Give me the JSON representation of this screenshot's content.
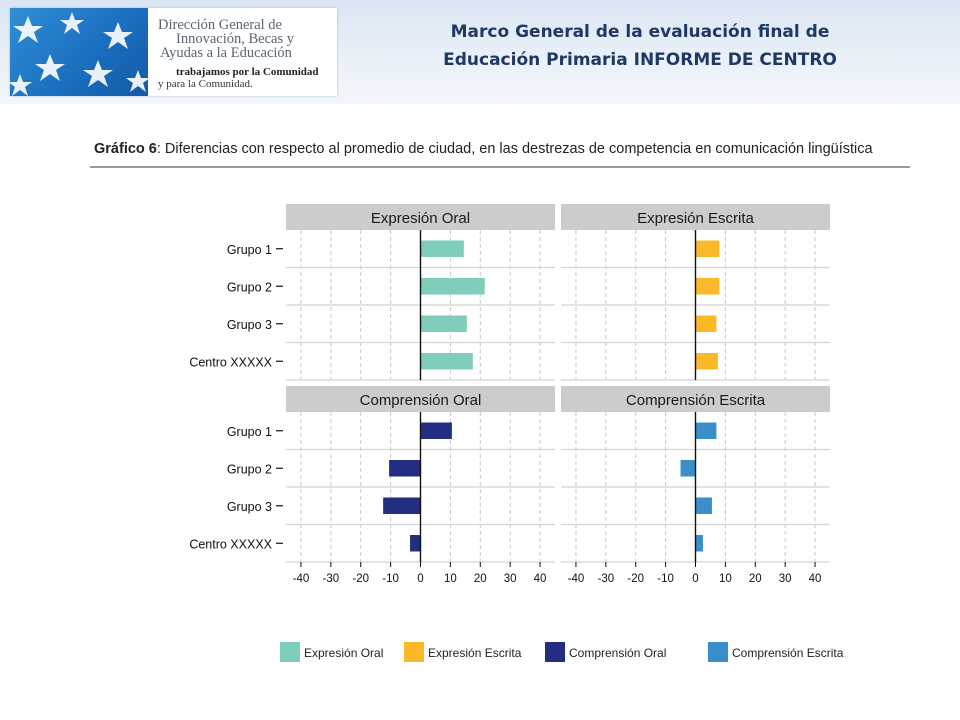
{
  "header": {
    "logo": {
      "line1": "Dirección General de",
      "line2": "Innovación, Becas y",
      "line3": "Ayudas a la Educación",
      "tagline1": "trabajamos por la Comunidad",
      "tagline2": "y para la Comunidad."
    },
    "title_line1": "Marco General de la evaluación final de",
    "title_line2": "Educación Primaria INFORME DE CENTRO"
  },
  "figure": {
    "caption_label": "Gráfico 6",
    "caption_text": ": Diferencias con respecto al promedio de ciudad, en las destrezas de competencia en comunicación lingüística"
  },
  "chart_data": {
    "type": "bar",
    "orientation": "horizontal",
    "layout": "facet-2x2",
    "categories": [
      "Grupo 1",
      "Grupo 2",
      "Grupo 3",
      "Centro  XXXXX"
    ],
    "xlim": [
      -45,
      45
    ],
    "xticks": [
      -40,
      -30,
      -20,
      -10,
      0,
      10,
      20,
      30,
      40
    ],
    "grid": true,
    "legend_position": "bottom",
    "panels": [
      {
        "title": "Expresión Oral",
        "color": "#7fcdbb",
        "values": [
          14.5,
          21.5,
          15.5,
          17.5
        ]
      },
      {
        "title": "Expresión Escrita",
        "color": "#fbb829",
        "values": [
          8,
          8,
          7,
          7.5
        ]
      },
      {
        "title": "Comprensión Oral",
        "color": "#232e82",
        "values": [
          10.5,
          -10.5,
          -12.5,
          -3.5
        ]
      },
      {
        "title": "Comprensión Escrita",
        "color": "#3a8fcb",
        "values": [
          7,
          -5,
          5.5,
          2.5
        ]
      }
    ],
    "legend": [
      {
        "label": "Expresión Oral",
        "color": "#7fcdbb"
      },
      {
        "label": "Expresión Escrita",
        "color": "#fbb829"
      },
      {
        "label": "Comprensión Oral",
        "color": "#232e82"
      },
      {
        "label": "Comprensión Escrita",
        "color": "#3a8fcb"
      }
    ]
  }
}
